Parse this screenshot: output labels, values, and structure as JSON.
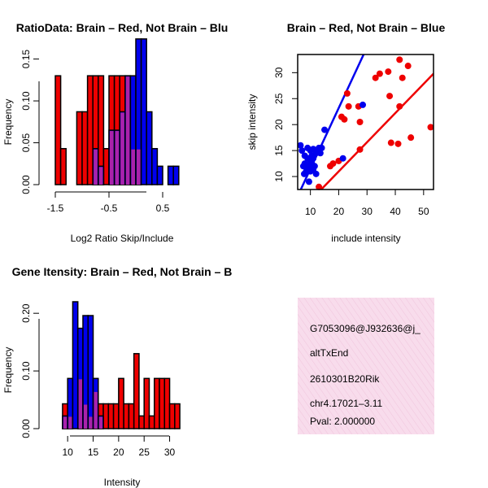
{
  "colors": {
    "red": "#ee0000",
    "blue": "#0000ee",
    "purple": "#aa22aa",
    "info_bg": "#f8dcec",
    "pval": "#aa0000"
  },
  "chart_data": [
    {
      "id": "ratio",
      "type": "bar",
      "title": "RatioData: Brain – Red, Not Brain – Blu",
      "xlabel": "Log2 Ratio Skip/Include",
      "ylabel": "Frequency",
      "xlim": [
        -1.5,
        1.0
      ],
      "ylim": [
        0,
        0.17
      ],
      "xticks": [
        -1.5,
        -0.5,
        0.5
      ],
      "xtick_labels": [
        "-1.5",
        "-0.5",
        "0.5"
      ],
      "yticks": [
        0.0,
        0.05,
        0.1,
        0.15
      ],
      "ytick_labels": [
        "0.00",
        "0.05",
        "0.10",
        "0.15"
      ],
      "bin_width": 0.1,
      "series": [
        {
          "name": "Brain",
          "color": "red",
          "bins": [
            {
              "x0": -1.5,
              "v": 0.13
            },
            {
              "x0": -1.4,
              "v": 0.043
            },
            {
              "x0": -1.1,
              "v": 0.087
            },
            {
              "x0": -1.0,
              "v": 0.087
            },
            {
              "x0": -0.9,
              "v": 0.13
            },
            {
              "x0": -0.8,
              "v": 0.13
            },
            {
              "x0": -0.7,
              "v": 0.13
            },
            {
              "x0": -0.6,
              "v": 0.043
            },
            {
              "x0": -0.5,
              "v": 0.13
            },
            {
              "x0": -0.4,
              "v": 0.13
            },
            {
              "x0": -0.3,
              "v": 0.13
            },
            {
              "x0": -0.2,
              "v": 0.13
            },
            {
              "x0": -0.1,
              "v": 0.043
            },
            {
              "x0": 0.0,
              "v": 0.043
            }
          ]
        },
        {
          "name": "Not Brain",
          "color": "blue",
          "bins": [
            {
              "x0": -0.8,
              "v": 0.043
            },
            {
              "x0": -0.7,
              "v": 0.022
            },
            {
              "x0": -0.5,
              "v": 0.065
            },
            {
              "x0": -0.4,
              "v": 0.065
            },
            {
              "x0": -0.3,
              "v": 0.087
            },
            {
              "x0": -0.2,
              "v": 0.13
            },
            {
              "x0": -0.1,
              "v": 0.13
            },
            {
              "x0": 0.0,
              "v": 0.174
            },
            {
              "x0": 0.1,
              "v": 0.174
            },
            {
              "x0": 0.2,
              "v": 0.087
            },
            {
              "x0": 0.3,
              "v": 0.043
            },
            {
              "x0": 0.4,
              "v": 0.022
            },
            {
              "x0": 0.6,
              "v": 0.022
            },
            {
              "x0": 0.7,
              "v": 0.022
            }
          ]
        }
      ]
    },
    {
      "id": "scatter",
      "type": "scatter",
      "title": "Brain – Red, Not Brain – Blue",
      "xlabel": "include intensity",
      "ylabel": "skip intensity",
      "xlim": [
        5.5,
        53.5
      ],
      "ylim": [
        7.5,
        33.5
      ],
      "xticks": [
        10,
        20,
        30,
        40,
        50
      ],
      "xtick_labels": [
        "10",
        "20",
        "30",
        "40",
        "50"
      ],
      "yticks": [
        10,
        15,
        20,
        25,
        30
      ],
      "ytick_labels": [
        "10",
        "15",
        "20",
        "25",
        "30"
      ],
      "series": [
        {
          "name": "Brain",
          "color": "red",
          "points": [
            [
              13,
              8
            ],
            [
              17,
              12
            ],
            [
              18,
              12.5
            ],
            [
              20,
              13
            ],
            [
              21,
              21.5
            ],
            [
              22,
              21
            ],
            [
              23,
              26
            ],
            [
              23.5,
              23.5
            ],
            [
              27,
              23.5
            ],
            [
              27.5,
              20.5
            ],
            [
              27.5,
              15.2
            ],
            [
              33,
              29
            ],
            [
              34.5,
              29.8
            ],
            [
              37.5,
              30.2
            ],
            [
              38,
              25.5
            ],
            [
              38.5,
              16.5
            ],
            [
              41,
              16.3
            ],
            [
              41.5,
              32.5
            ],
            [
              41.5,
              23.5
            ],
            [
              42.5,
              29
            ],
            [
              44.5,
              31.3
            ],
            [
              45.5,
              17.5
            ],
            [
              52.5,
              19.5
            ]
          ],
          "fit": [
            [
              13.8,
              7.5
            ],
            [
              53.5,
              29.8
            ]
          ]
        },
        {
          "name": "Not Brain",
          "color": "blue",
          "points": [
            [
              6.5,
              16
            ],
            [
              7,
              15
            ],
            [
              7.5,
              12
            ],
            [
              7.8,
              10.5
            ],
            [
              8,
              14
            ],
            [
              8,
              12.5
            ],
            [
              8.5,
              11
            ],
            [
              9,
              15.5
            ],
            [
              9,
              13.5
            ],
            [
              9,
              12
            ],
            [
              9.5,
              11.5
            ],
            [
              9.5,
              9
            ],
            [
              10,
              15
            ],
            [
              10,
              13
            ],
            [
              10,
              11
            ],
            [
              10.5,
              14
            ],
            [
              10.5,
              12.5
            ],
            [
              11,
              15.3
            ],
            [
              11,
              13.5
            ],
            [
              11,
              11.3
            ],
            [
              11.5,
              12
            ],
            [
              12,
              14.5
            ],
            [
              12,
              10.5
            ],
            [
              13,
              15.5
            ],
            [
              13.5,
              14.5
            ],
            [
              14,
              15.5
            ],
            [
              15,
              19
            ],
            [
              21.5,
              13.5
            ],
            [
              28.5,
              23.8
            ]
          ],
          "fit": [
            [
              6.6,
              7.5
            ],
            [
              28.8,
              33.5
            ]
          ]
        }
      ]
    },
    {
      "id": "intensity",
      "type": "bar",
      "title": "Gene Itensity: Brain – Red, Not Brain – B",
      "xlabel": "Intensity",
      "ylabel": "Frequency",
      "xlim": [
        7.9,
        33.9
      ],
      "ylim": [
        0,
        0.22
      ],
      "xticks": [
        10,
        15,
        20,
        25,
        30
      ],
      "xtick_labels": [
        "10",
        "15",
        "20",
        "25",
        "30"
      ],
      "yticks": [
        0.0,
        0.1,
        0.2
      ],
      "ytick_labels": [
        "0.00",
        "0.10",
        "0.20"
      ],
      "bin_width": 1,
      "series": [
        {
          "name": "Brain",
          "color": "red",
          "bins": [
            {
              "x0": 9,
              "v": 0.043
            },
            {
              "x0": 10,
              "v": 0.022
            },
            {
              "x0": 12,
              "v": 0.087
            },
            {
              "x0": 13,
              "v": 0.043
            },
            {
              "x0": 14,
              "v": 0.022
            },
            {
              "x0": 15,
              "v": 0.065
            },
            {
              "x0": 16,
              "v": 0.043
            },
            {
              "x0": 17,
              "v": 0.043
            },
            {
              "x0": 18,
              "v": 0.043
            },
            {
              "x0": 19,
              "v": 0.043
            },
            {
              "x0": 20,
              "v": 0.087
            },
            {
              "x0": 21,
              "v": 0.043
            },
            {
              "x0": 22,
              "v": 0.043
            },
            {
              "x0": 23,
              "v": 0.13
            },
            {
              "x0": 24,
              "v": 0.022
            },
            {
              "x0": 25,
              "v": 0.087
            },
            {
              "x0": 26,
              "v": 0.022
            },
            {
              "x0": 27,
              "v": 0.087
            },
            {
              "x0": 28,
              "v": 0.087
            },
            {
              "x0": 29,
              "v": 0.087
            },
            {
              "x0": 30,
              "v": 0.043
            },
            {
              "x0": 31,
              "v": 0.043
            }
          ]
        },
        {
          "name": "Not Brain",
          "color": "blue",
          "bins": [
            {
              "x0": 9,
              "v": 0.022
            },
            {
              "x0": 10,
              "v": 0.087
            },
            {
              "x0": 11,
              "v": 0.22
            },
            {
              "x0": 12,
              "v": 0.174
            },
            {
              "x0": 13,
              "v": 0.196
            },
            {
              "x0": 14,
              "v": 0.196
            },
            {
              "x0": 15,
              "v": 0.087
            },
            {
              "x0": 16,
              "v": 0.022
            }
          ]
        }
      ]
    }
  ],
  "info": {
    "probe_id": "G7053096@J932636@j_",
    "event_type": "altTxEnd",
    "gene": "2610301B20Rik",
    "location": "chr4.17021–3.11",
    "pval": "Pval: 2.000000"
  }
}
